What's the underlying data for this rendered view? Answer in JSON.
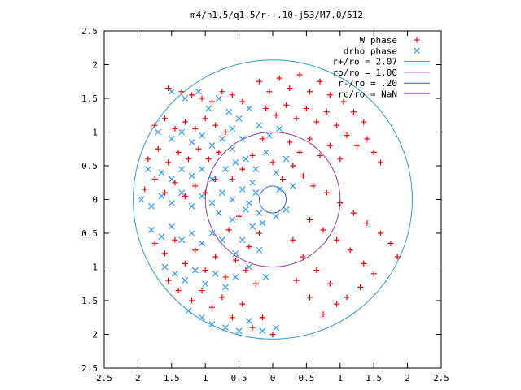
{
  "chart_data": {
    "type": "scatter",
    "title": "m4/n1.5/q1.5/r-+.10-j53/M7.0/512",
    "xlim": [
      -2.5,
      2.5
    ],
    "ylim": [
      -2.5,
      2.5
    ],
    "x_ticks": [
      "2.5",
      "2",
      "1.5",
      "1",
      "0.5",
      "0",
      "0.5",
      "1",
      "1.5",
      "2",
      "2.5"
    ],
    "y_ticks": [
      "2.5",
      "2",
      "1.5",
      "1",
      "0.5",
      "0",
      "0.5",
      "1",
      "1.5",
      "2",
      "2.5"
    ],
    "x_tick_values": [
      -2.5,
      -2,
      -1.5,
      -1,
      -0.5,
      0,
      0.5,
      1,
      1.5,
      2,
      2.5
    ],
    "y_tick_values": [
      2.5,
      2,
      1.5,
      1,
      0.5,
      0,
      -0.5,
      -1,
      -1.5,
      -2,
      -2.5
    ],
    "grid": false,
    "legend_position": "top-right",
    "legend": [
      {
        "label": "W phase",
        "marker": "+",
        "color": "#ff0000"
      },
      {
        "label": "drho phase",
        "marker": "x",
        "color": "#3399ff"
      },
      {
        "label": "r+/ro = 2.07",
        "marker": "line",
        "color": "#3399cc"
      },
      {
        "label": "ro/ro = 1.00",
        "marker": "line",
        "color": "#993399"
      },
      {
        "label": "r-/ro = .20",
        "marker": "line",
        "color": "#3366cc"
      },
      {
        "label": "rc/ro = NaN",
        "marker": "line",
        "color": "#33cccc"
      }
    ],
    "circles": [
      {
        "name": "r+/ro = 2.07",
        "radius": 2.07,
        "color": "#3399cc"
      },
      {
        "name": "ro/ro = 1.00",
        "radius": 1.0,
        "color": "#993399"
      },
      {
        "name": "r-/ro = .20",
        "radius": 0.2,
        "color": "#3366cc"
      }
    ],
    "series": [
      {
        "name": "W phase",
        "color": "#ff0000",
        "points": [
          [
            -1.55,
            1.65
          ],
          [
            -1.35,
            1.6
          ],
          [
            -1.2,
            1.55
          ],
          [
            -1.05,
            1.5
          ],
          [
            -0.9,
            1.45
          ],
          [
            -0.75,
            1.6
          ],
          [
            -0.6,
            1.55
          ],
          [
            -0.45,
            1.45
          ],
          [
            -1.75,
            1.1
          ],
          [
            -1.6,
            1.2
          ],
          [
            -1.45,
            1.05
          ],
          [
            -1.3,
            1.15
          ],
          [
            -1.15,
            1.05
          ],
          [
            -1.0,
            1.2
          ],
          [
            -0.85,
            1.1
          ],
          [
            -0.7,
            1.0
          ],
          [
            -1.85,
            0.6
          ],
          [
            -1.7,
            0.75
          ],
          [
            -1.55,
            0.55
          ],
          [
            -1.4,
            0.7
          ],
          [
            -1.25,
            0.6
          ],
          [
            -1.1,
            0.75
          ],
          [
            -0.95,
            0.6
          ],
          [
            -0.8,
            0.7
          ],
          [
            -1.9,
            0.15
          ],
          [
            -1.75,
            0.3
          ],
          [
            -1.6,
            0.1
          ],
          [
            -1.45,
            0.25
          ],
          [
            -1.3,
            0.05
          ],
          [
            -1.15,
            0.2
          ],
          [
            -1.0,
            0.1
          ],
          [
            -0.85,
            0.3
          ],
          [
            -0.2,
            1.75
          ],
          [
            -0.05,
            1.6
          ],
          [
            0.1,
            1.8
          ],
          [
            0.25,
            1.65
          ],
          [
            0.4,
            1.85
          ],
          [
            0.55,
            1.6
          ],
          [
            0.7,
            1.75
          ],
          [
            0.85,
            1.55
          ],
          [
            -0.1,
            1.35
          ],
          [
            0.05,
            1.25
          ],
          [
            0.2,
            1.4
          ],
          [
            0.35,
            1.2
          ],
          [
            0.5,
            1.35
          ],
          [
            0.65,
            1.15
          ],
          [
            0.8,
            1.3
          ],
          [
            0.95,
            1.1
          ],
          [
            1.05,
            1.45
          ],
          [
            1.2,
            1.3
          ],
          [
            1.35,
            1.15
          ],
          [
            1.1,
            0.95
          ],
          [
            1.25,
            0.8
          ],
          [
            1.4,
            0.9
          ],
          [
            1.5,
            0.7
          ],
          [
            1.6,
            0.55
          ],
          [
            0.25,
            0.85
          ],
          [
            0.4,
            0.7
          ],
          [
            0.55,
            0.9
          ],
          [
            0.7,
            0.65
          ],
          [
            0.85,
            0.8
          ],
          [
            1.0,
            0.6
          ],
          [
            0.3,
            0.5
          ],
          [
            0.45,
            0.35
          ],
          [
            0.6,
            0.2
          ],
          [
            0.8,
            0.1
          ],
          [
            1.0,
            -0.05
          ],
          [
            1.2,
            -0.2
          ],
          [
            1.4,
            -0.35
          ],
          [
            1.6,
            -0.5
          ],
          [
            1.75,
            -0.65
          ],
          [
            1.85,
            -0.85
          ],
          [
            0.55,
            -0.3
          ],
          [
            0.75,
            -0.45
          ],
          [
            0.95,
            -0.6
          ],
          [
            1.15,
            -0.75
          ],
          [
            1.35,
            -0.95
          ],
          [
            1.5,
            -1.1
          ],
          [
            1.3,
            -1.3
          ],
          [
            1.1,
            -1.45
          ],
          [
            0.3,
            -0.6
          ],
          [
            0.45,
            -0.85
          ],
          [
            0.65,
            -1.05
          ],
          [
            0.85,
            -1.25
          ],
          [
            0.95,
            -1.55
          ],
          [
            0.75,
            -1.7
          ],
          [
            0.55,
            -1.45
          ],
          [
            0.35,
            -1.2
          ],
          [
            -1.75,
            -0.65
          ],
          [
            -1.6,
            -0.8
          ],
          [
            -1.45,
            -0.6
          ],
          [
            -1.3,
            -0.95
          ],
          [
            -1.15,
            -0.75
          ],
          [
            -1.0,
            -1.05
          ],
          [
            -0.85,
            -0.85
          ],
          [
            -0.7,
            -1.15
          ],
          [
            -1.55,
            -1.2
          ],
          [
            -1.4,
            -1.35
          ],
          [
            -1.2,
            -1.5
          ],
          [
            -1.05,
            -1.35
          ],
          [
            -0.9,
            -1.6
          ],
          [
            -0.75,
            -1.45
          ],
          [
            -0.6,
            -1.75
          ],
          [
            -0.45,
            -1.55
          ],
          [
            -0.3,
            -1.9
          ],
          [
            -0.15,
            -1.75
          ],
          [
            0.0,
            -2.0
          ],
          [
            -0.25,
            -1.25
          ],
          [
            -0.4,
            -1.05
          ],
          [
            -0.55,
            -0.9
          ],
          [
            -0.35,
            -0.7
          ],
          [
            -0.2,
            -0.5
          ],
          [
            -0.45,
            0.45
          ],
          [
            -0.6,
            0.3
          ],
          [
            -0.3,
            0.65
          ],
          [
            -0.15,
            0.9
          ],
          [
            0.0,
            0.55
          ],
          [
            0.15,
            0.3
          ],
          [
            -0.5,
            -0.25
          ],
          [
            -0.65,
            -0.45
          ]
        ]
      },
      {
        "name": "drho phase",
        "color": "#3399ff",
        "points": [
          [
            -1.5,
            1.6
          ],
          [
            -1.3,
            1.5
          ],
          [
            -1.1,
            1.6
          ],
          [
            -0.95,
            1.35
          ],
          [
            -0.8,
            1.5
          ],
          [
            -0.65,
            1.3
          ],
          [
            -0.5,
            1.2
          ],
          [
            -0.35,
            1.35
          ],
          [
            -1.7,
            1.0
          ],
          [
            -1.5,
            0.9
          ],
          [
            -1.35,
            1.0
          ],
          [
            -1.2,
            0.85
          ],
          [
            -1.05,
            0.95
          ],
          [
            -0.9,
            0.8
          ],
          [
            -0.75,
            0.9
          ],
          [
            -0.6,
            0.75
          ],
          [
            -1.85,
            0.45
          ],
          [
            -1.65,
            0.4
          ],
          [
            -1.5,
            0.3
          ],
          [
            -1.35,
            0.45
          ],
          [
            -1.2,
            0.35
          ],
          [
            -1.05,
            0.45
          ],
          [
            -0.9,
            0.3
          ],
          [
            -0.7,
            0.45
          ],
          [
            -1.95,
            0.0
          ],
          [
            -1.8,
            -0.1
          ],
          [
            -1.65,
            0.05
          ],
          [
            -1.5,
            -0.05
          ],
          [
            -1.35,
            0.1
          ],
          [
            -1.2,
            -0.1
          ],
          [
            -1.05,
            0.05
          ],
          [
            -0.9,
            -0.05
          ],
          [
            -0.75,
            0.1
          ],
          [
            -0.6,
            0.0
          ],
          [
            -0.45,
            0.15
          ],
          [
            -0.35,
            -0.05
          ],
          [
            -0.25,
            0.1
          ],
          [
            -0.3,
            0.25
          ],
          [
            -0.2,
            -0.2
          ],
          [
            -0.4,
            -0.15
          ],
          [
            -1.8,
            -0.45
          ],
          [
            -1.65,
            -0.55
          ],
          [
            -1.5,
            -0.4
          ],
          [
            -1.35,
            -0.6
          ],
          [
            -1.2,
            -0.5
          ],
          [
            -1.05,
            -0.65
          ],
          [
            -0.9,
            -0.5
          ],
          [
            -0.75,
            -0.6
          ],
          [
            -1.6,
            -1.0
          ],
          [
            -1.45,
            -1.1
          ],
          [
            -1.3,
            -1.2
          ],
          [
            -1.15,
            -1.05
          ],
          [
            -1.0,
            -1.25
          ],
          [
            -0.85,
            -1.1
          ],
          [
            -0.7,
            -1.3
          ],
          [
            -0.55,
            -1.15
          ],
          [
            -1.25,
            -1.65
          ],
          [
            -1.05,
            -1.75
          ],
          [
            -0.9,
            -1.85
          ],
          [
            -0.7,
            -1.9
          ],
          [
            -0.5,
            -1.95
          ],
          [
            -0.35,
            -1.8
          ],
          [
            -0.15,
            -1.95
          ],
          [
            0.05,
            -1.9
          ],
          [
            -0.4,
            0.6
          ],
          [
            -0.55,
            0.55
          ],
          [
            -0.25,
            0.45
          ],
          [
            -0.1,
            0.7
          ],
          [
            0.05,
            0.4
          ],
          [
            0.2,
            0.6
          ],
          [
            0.3,
            0.2
          ],
          [
            0.1,
            0.15
          ],
          [
            -0.2,
            1.1
          ],
          [
            -0.05,
            0.95
          ],
          [
            0.1,
            1.05
          ],
          [
            -0.45,
            0.9
          ],
          [
            -0.6,
            1.05
          ],
          [
            -0.3,
            -0.4
          ],
          [
            -0.45,
            -0.6
          ],
          [
            -0.15,
            -0.35
          ],
          [
            0.05,
            -0.25
          ],
          [
            0.2,
            -0.15
          ],
          [
            -0.6,
            -0.3
          ],
          [
            -0.8,
            -0.2
          ],
          [
            -0.55,
            -0.8
          ],
          [
            -0.35,
            -1.0
          ],
          [
            -0.2,
            -0.75
          ],
          [
            -0.1,
            -1.15
          ]
        ]
      }
    ]
  }
}
